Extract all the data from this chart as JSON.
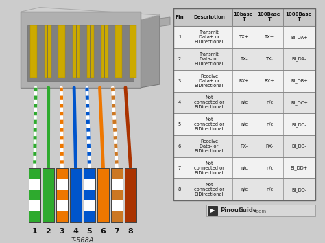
{
  "bg_color": "#cccccc",
  "pin_data": [
    {
      "pin": "1",
      "desc": "Transmit\nData+ or\nBiDirectional",
      "t10": "TX+",
      "t100": "TX+",
      "t1000": "BI_DA+"
    },
    {
      "pin": "2",
      "desc": "Transmit\nData- or\nBiDirectional",
      "t10": "TX-",
      "t100": "TX-",
      "t1000": "BI_DA-"
    },
    {
      "pin": "3",
      "desc": "Receive\nData+ or\nBiDirectional",
      "t10": "RX+",
      "t100": "RX+",
      "t1000": "BI_DB+"
    },
    {
      "pin": "4",
      "desc": "Not\nconnected or\nBiDirectional",
      "t10": "n/c",
      "t100": "n/c",
      "t1000": "BI_DC+"
    },
    {
      "pin": "5",
      "desc": "Not\nconnected or\nBiDirectional",
      "t10": "n/c",
      "t100": "n/c",
      "t1000": "BI_DC-"
    },
    {
      "pin": "6",
      "desc": "Receive\nData- or\nBiDirectional",
      "t10": "RX-",
      "t100": "RX-",
      "t1000": "BI_DB-"
    },
    {
      "pin": "7",
      "desc": "Not\nconnected or\nBiDirectional",
      "t10": "n/c",
      "t100": "n/c",
      "t1000": "BI_DD+"
    },
    {
      "pin": "8",
      "desc": "Not\nconnected or\nBiDirectional",
      "t10": "n/c",
      "t100": "n/c",
      "t1000": "BI_DD-"
    }
  ],
  "wire_solid_colors": [
    "#2eaa2e",
    "#2eaa2e",
    "#ee7700",
    "#0055cc",
    "#0055cc",
    "#ee7700",
    "#cc7722",
    "#aa3300"
  ],
  "wire_bg_colors": [
    "#ffffff",
    "#2eaa2e",
    "#ffffff",
    "#0055cc",
    "#ffffff",
    "#ee7700",
    "#ffffff",
    "#aa3300"
  ],
  "wire_is_striped": [
    true,
    false,
    true,
    false,
    true,
    false,
    true,
    false
  ],
  "connector_gray": "#b0b0b0",
  "connector_dark": "#888888",
  "connector_light": "#d0d0d0",
  "gold_color": "#ccaa00",
  "subtitle": "T-568A"
}
